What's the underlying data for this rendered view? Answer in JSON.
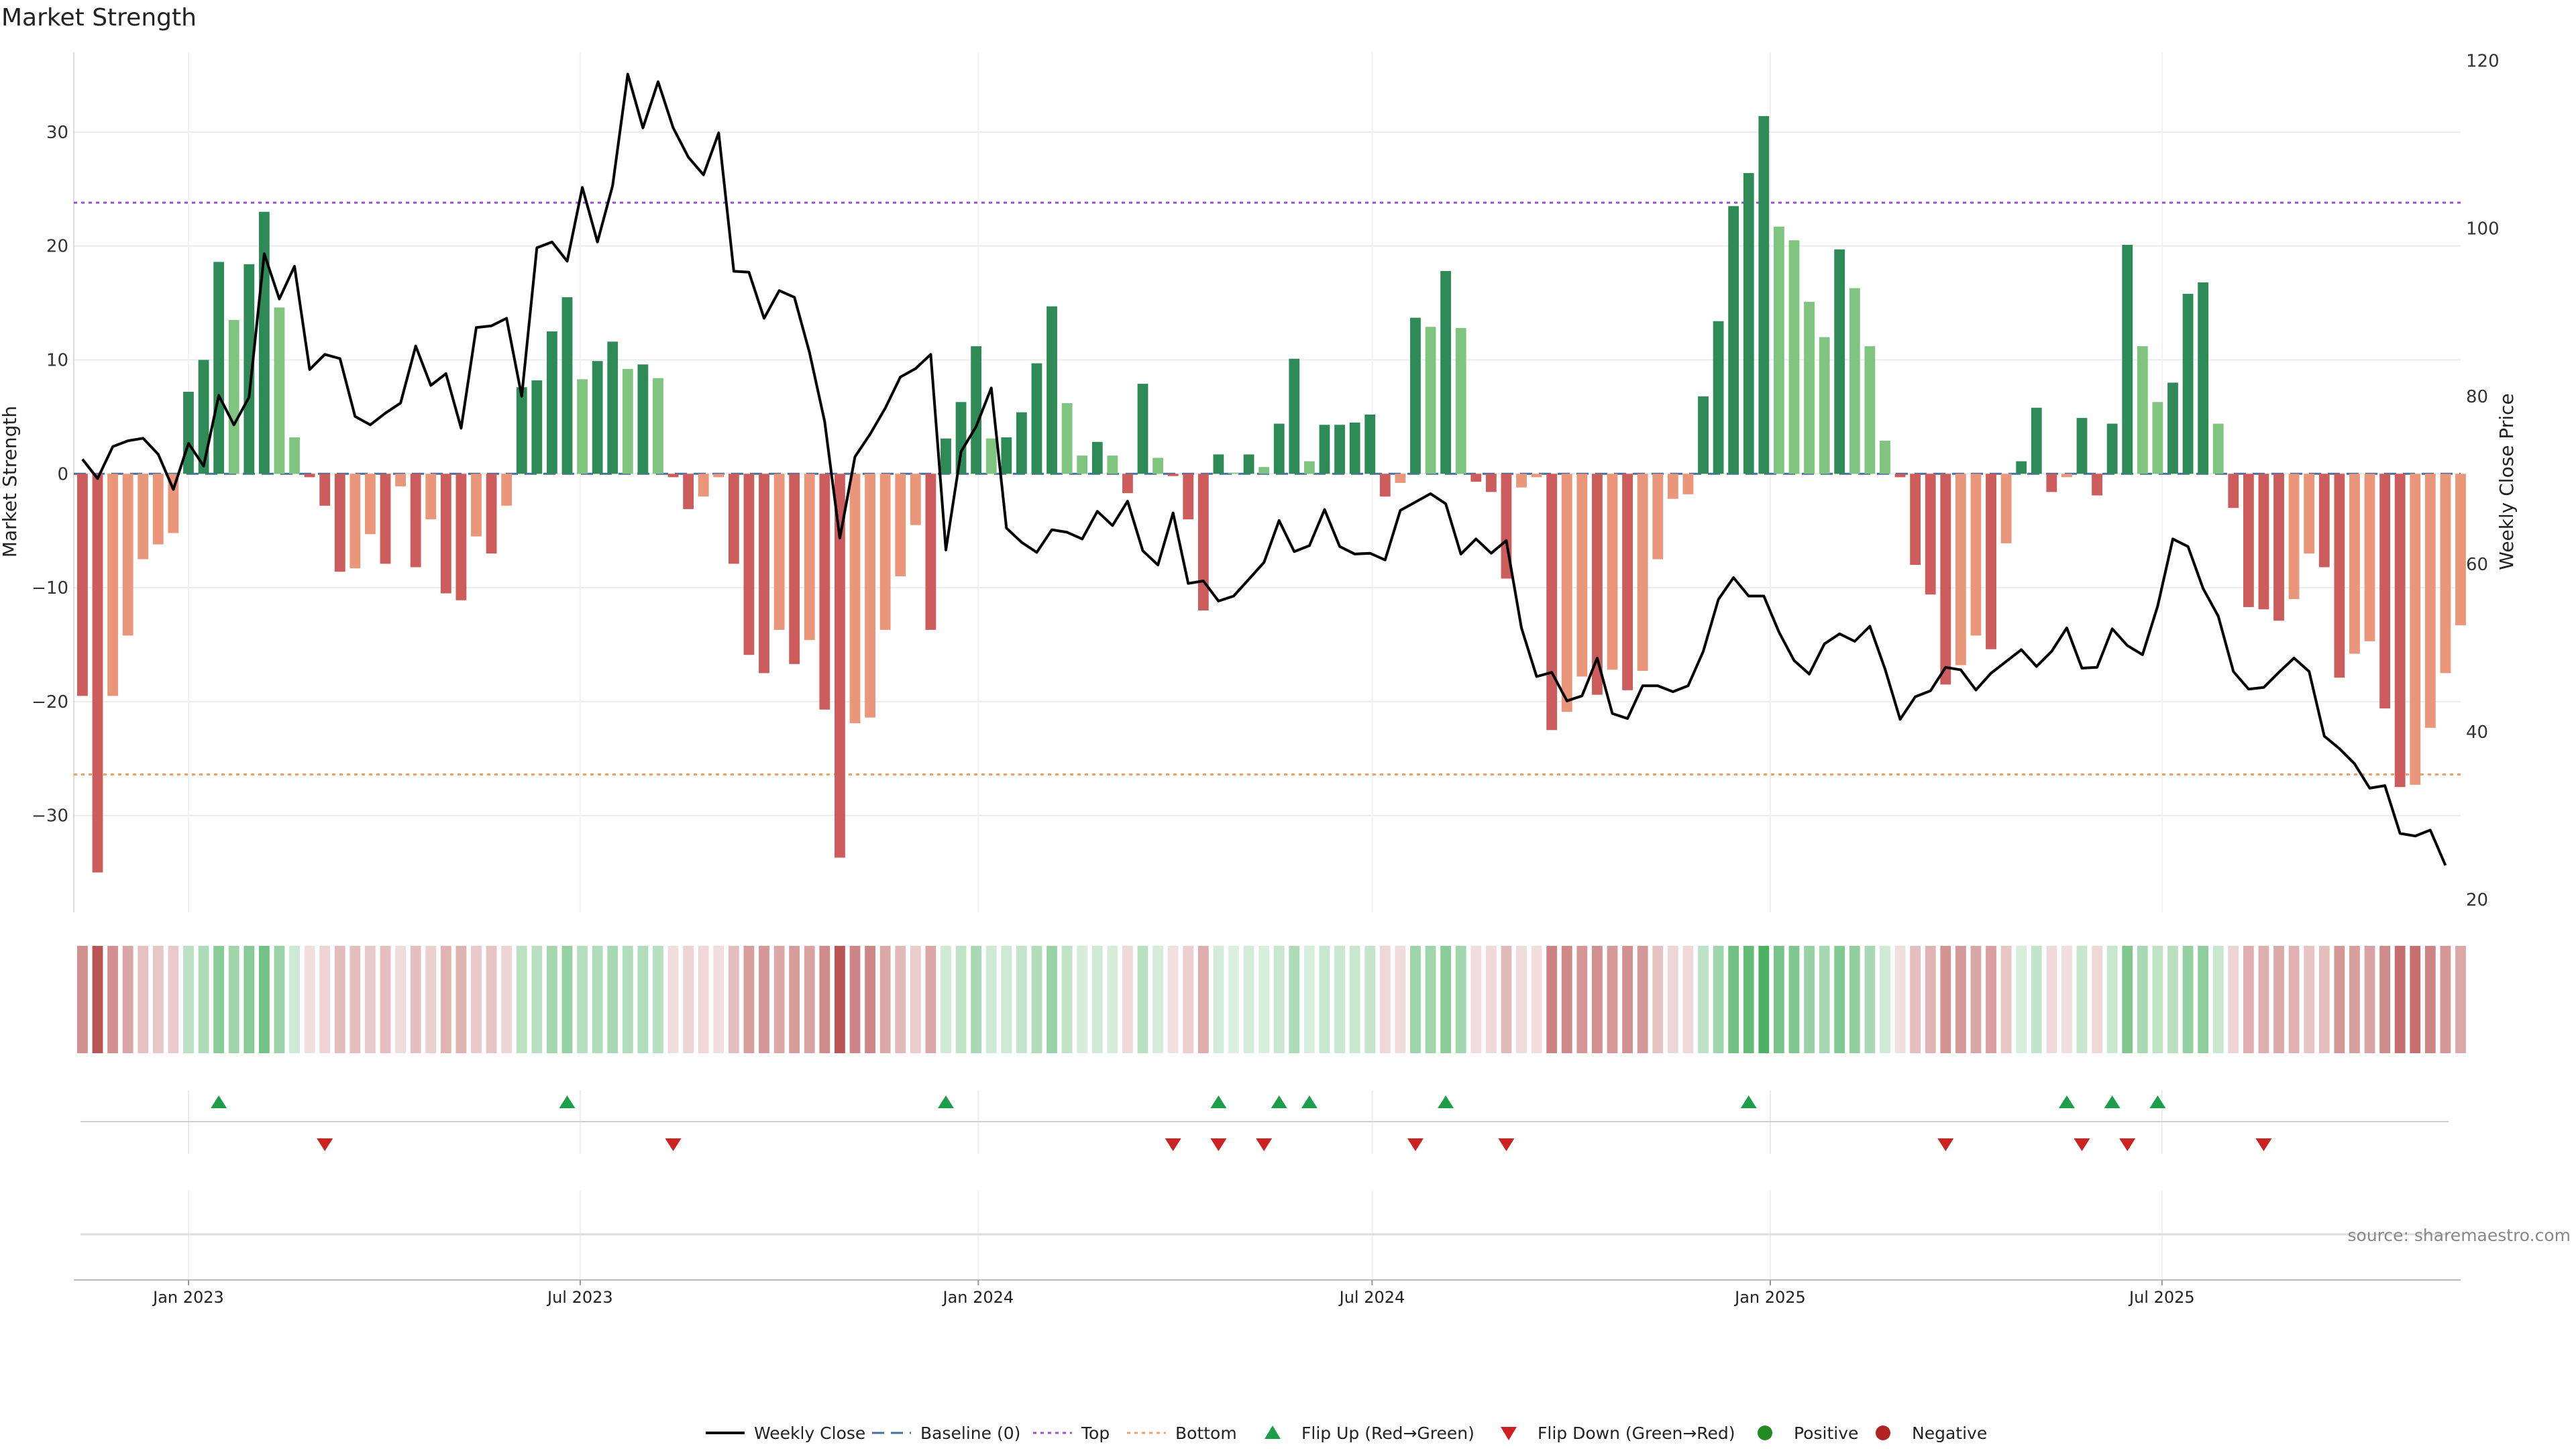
{
  "chart_data": {
    "type": "bar",
    "title": "Market Strength",
    "ylabel": "Market Strength",
    "y2label": "Weekly Close Price",
    "ylim": [
      -38.5,
      37
    ],
    "y2lim": [
      18.5,
      121
    ],
    "yticks": [
      -30,
      -20,
      -10,
      0,
      10,
      20,
      30
    ],
    "y2ticks": [
      20,
      40,
      60,
      80,
      100,
      120
    ],
    "xlim": [
      "2022-11-09",
      "2025-11-16"
    ],
    "xticks": [
      {
        "date": "2023-01-01",
        "label": "Jan 2023"
      },
      {
        "date": "2023-07-01",
        "label": "Jul 2023"
      },
      {
        "date": "2024-01-01",
        "label": "Jan 2024"
      },
      {
        "date": "2024-07-01",
        "label": "Jul 2024"
      },
      {
        "date": "2025-01-01",
        "label": "Jan 2025"
      },
      {
        "date": "2025-07-01",
        "label": "Jul 2025"
      }
    ],
    "start_date": "2022-11-13",
    "interval_days": 7,
    "top_line": 23.8,
    "bottom_line": -26.4,
    "baseline": 0,
    "strength": [
      -19.5,
      -35.0,
      -19.5,
      -14.2,
      -7.5,
      -6.2,
      -5.2,
      7.2,
      10.0,
      18.6,
      13.5,
      18.4,
      23.0,
      14.6,
      3.2,
      -0.3,
      -2.8,
      -8.6,
      -8.3,
      -5.3,
      -7.9,
      -1.1,
      -8.2,
      -4.0,
      -10.5,
      -11.1,
      -5.5,
      -7.0,
      -2.8,
      7.6,
      8.2,
      12.5,
      15.5,
      8.3,
      9.9,
      11.6,
      9.2,
      9.6,
      8.4,
      -0.3,
      -3.1,
      -2.0,
      -0.3,
      -7.9,
      -15.9,
      -17.5,
      -13.7,
      -16.7,
      -14.6,
      -20.7,
      -33.7,
      -21.9,
      -21.4,
      -13.7,
      -9.0,
      -4.5,
      -13.7,
      3.1,
      6.3,
      11.2,
      3.1,
      3.2,
      5.4,
      9.7,
      14.7,
      6.2,
      1.6,
      2.8,
      1.6,
      -1.7,
      7.9,
      1.4,
      -0.2,
      -4.0,
      -12.0,
      1.7,
      0.1,
      1.7,
      0.6,
      4.4,
      10.1,
      1.1,
      4.3,
      4.3,
      4.5,
      5.2,
      -2.0,
      -0.8,
      13.7,
      12.9,
      17.8,
      12.8,
      -0.7,
      -1.6,
      -9.2,
      -1.2,
      -0.3,
      -22.5,
      -20.9,
      -17.8,
      -19.4,
      -17.2,
      -19.0,
      -17.3,
      -7.5,
      -2.2,
      -1.8,
      6.8,
      13.4,
      23.5,
      26.4,
      31.4,
      21.7,
      20.5,
      15.1,
      12.0,
      19.7,
      16.3,
      11.2,
      2.9,
      -0.3,
      -8.0,
      -10.6,
      -18.5,
      -16.8,
      -14.2,
      -15.4,
      -6.1,
      1.1,
      5.8,
      -1.6,
      -0.3,
      4.9,
      -1.9,
      4.4,
      20.1,
      11.2,
      6.3,
      8.0,
      15.8,
      16.8,
      4.4,
      -3.0,
      -11.7,
      -11.9,
      -12.9,
      -11.0,
      -7.0,
      -8.2,
      -17.9,
      -15.8,
      -14.7,
      -20.6,
      -27.5,
      -27.3,
      -22.3,
      -17.5,
      -13.3
    ],
    "price": [
      72.5,
      70.2,
      74.0,
      74.7,
      75.0,
      73.1,
      68.9,
      74.4,
      71.7,
      80.1,
      76.6,
      79.9,
      97.0,
      91.6,
      95.5,
      83.2,
      85.0,
      84.5,
      77.6,
      76.6,
      78.0,
      79.2,
      86.0,
      81.3,
      82.7,
      76.2,
      88.2,
      88.4,
      89.3,
      80.0,
      97.7,
      98.4,
      96.1,
      104.9,
      98.4,
      105.1,
      118.4,
      112.0,
      117.5,
      112.0,
      108.5,
      106.4,
      111.4,
      94.9,
      94.8,
      89.3,
      92.6,
      91.8,
      85.2,
      77.0,
      63.1,
      72.8,
      75.5,
      78.6,
      82.3,
      83.3,
      85.0,
      61.7,
      73.4,
      76.4,
      81.0,
      64.3,
      62.6,
      61.4,
      64.1,
      63.8,
      63.0,
      66.3,
      64.6,
      67.5,
      61.6,
      59.9,
      66.1,
      57.7,
      58.0,
      55.6,
      56.2,
      58.2,
      60.2,
      65.2,
      61.5,
      62.2,
      66.5,
      62.1,
      61.2,
      61.3,
      60.5,
      66.4,
      67.4,
      68.4,
      67.2,
      61.2,
      63.0,
      61.3,
      62.8,
      52.4,
      46.6,
      47.1,
      43.7,
      44.3,
      48.8,
      42.2,
      41.6,
      45.5,
      45.5,
      44.8,
      45.5,
      49.6,
      55.8,
      58.4,
      56.2,
      56.2,
      51.9,
      48.5,
      46.9,
      50.5,
      51.7,
      50.8,
      52.6,
      47.5,
      41.5,
      44.2,
      44.9,
      47.7,
      47.4,
      45.0,
      47.0,
      48.4,
      49.8,
      47.8,
      49.6,
      52.4,
      47.6,
      47.7,
      52.3,
      50.3,
      49.2,
      55.0,
      63.0,
      62.1,
      57.1,
      53.8,
      47.2,
      45.1,
      45.3,
      47.1,
      48.8,
      47.2,
      39.5,
      38.0,
      36.2,
      33.3,
      33.6,
      27.9,
      27.6,
      28.3,
      24.1
    ],
    "flip_up_idx": [
      9,
      32,
      57,
      75,
      79,
      81,
      90,
      110,
      131,
      134,
      137
    ],
    "flip_down_idx": [
      16,
      39,
      72,
      75,
      78,
      88,
      94,
      123,
      132,
      135,
      144
    ],
    "colors": {
      "up_strong": "#2e8b57",
      "up_light": "#7fc47f",
      "down_strong": "#cd5c5c",
      "down_light": "#e9967a",
      "top": "#9b4fd0",
      "bottom": "#f0a060",
      "baseline": "#4a6e9a",
      "price": "#000000",
      "flip_up": "#1e9e4a",
      "flip_down": "#cc2222",
      "positive": "#228b22",
      "negative": "#b22222"
    },
    "legend": [
      "Weekly Close",
      "Baseline (0)",
      "Top",
      "Bottom",
      "Flip Up (Red→Green)",
      "Flip Down (Green→Red)",
      "Positive",
      "Negative"
    ],
    "source": "source: sharemaestro.com"
  }
}
